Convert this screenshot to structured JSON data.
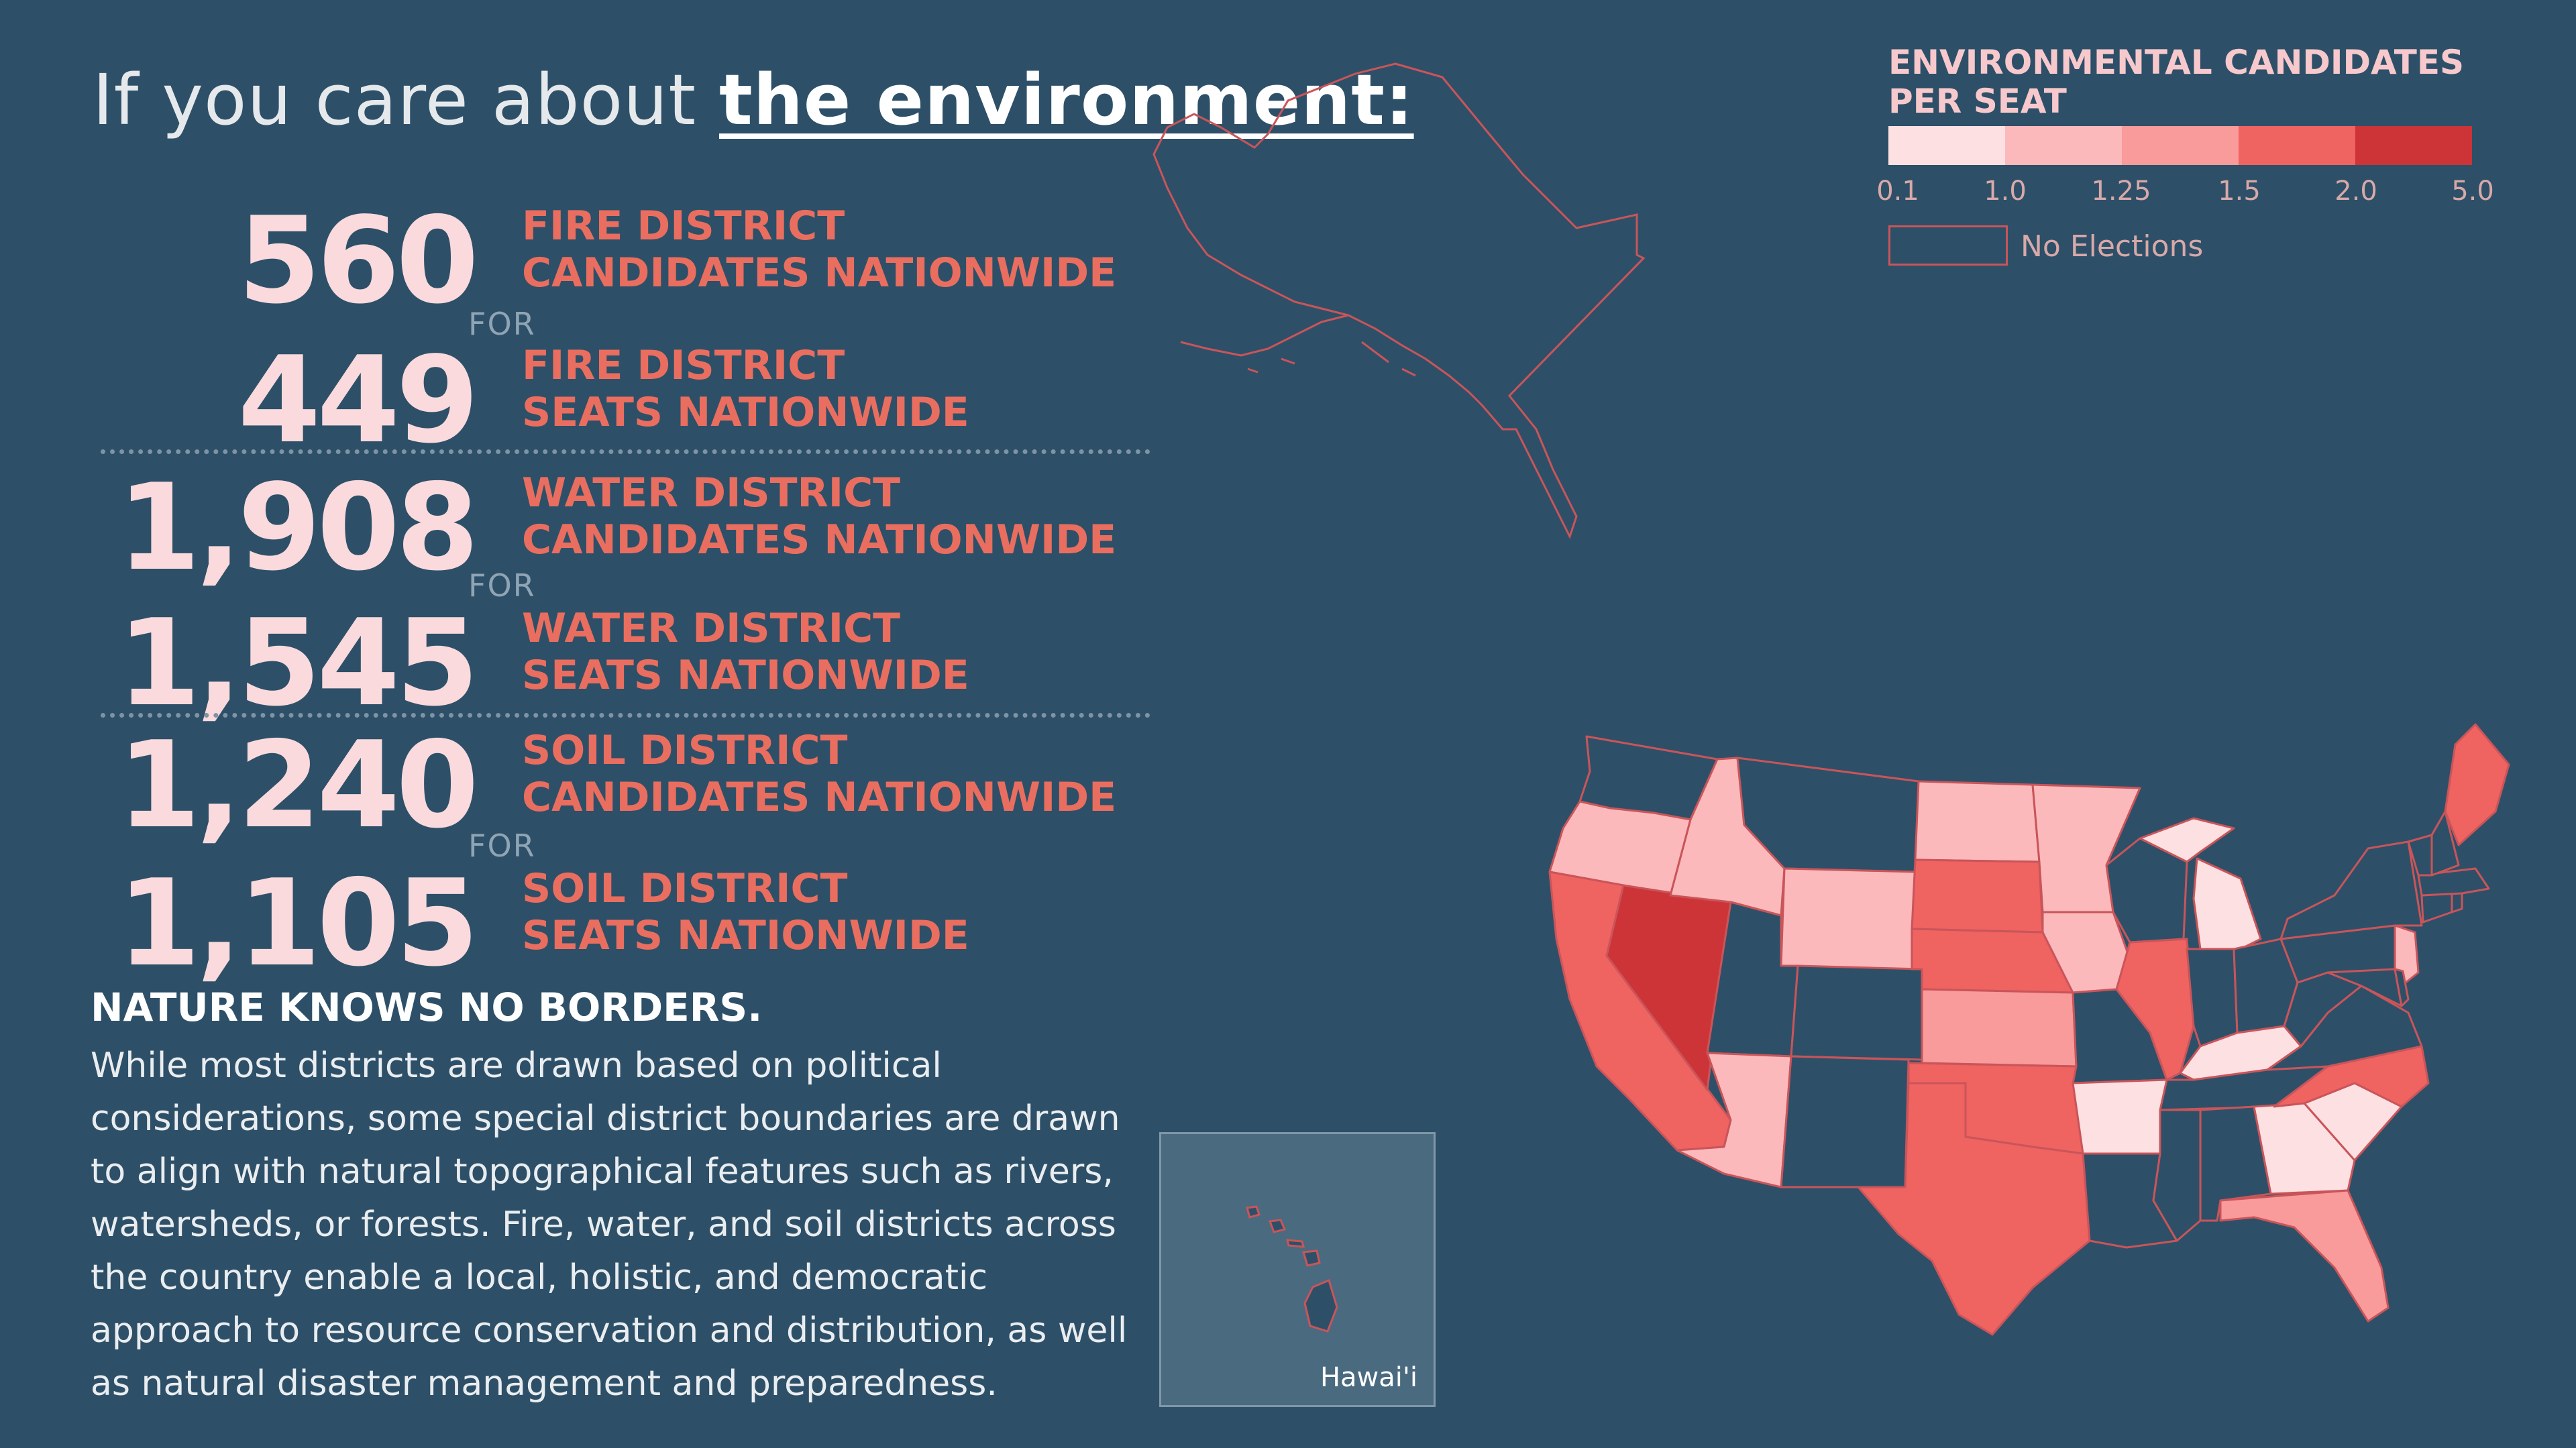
{
  "headline": {
    "prefix": "If you care about ",
    "emphasis": "the environment:"
  },
  "stats": [
    {
      "number": "560",
      "label_line1": "FIRE DISTRICT",
      "label_line2": "CANDIDATES NATIONWIDE"
    },
    {
      "number": "449",
      "label_line1": "FIRE DISTRICT",
      "label_line2": "SEATS NATIONWIDE"
    },
    {
      "number": "1,908",
      "label_line1": "WATER DISTRICT",
      "label_line2": "CANDIDATES NATIONWIDE"
    },
    {
      "number": "1,545",
      "label_line1": "WATER DISTRICT",
      "label_line2": "SEATS NATIONWIDE"
    },
    {
      "number": "1,240",
      "label_line1": "SOIL DISTRICT",
      "label_line2": "CANDIDATES NATIONWIDE"
    },
    {
      "number": "1,105",
      "label_line1": "SOIL DISTRICT",
      "label_line2": "SEATS NATIONWIDE"
    }
  ],
  "for_text": "FOR",
  "nature": {
    "title": "NATURE KNOWS NO BORDERS.",
    "body": "While most districts are drawn based on political considerations, some special district boundaries are drawn to align with natural topographical features such as rivers, watersheds, or forests. Fire, water, and soil districts across the country enable a local, holistic, and democratic approach to resource conservation and distribution, as well as natural disaster management and preparedness."
  },
  "legend": {
    "title": "ENVIRONMENTAL CANDIDATES PER SEAT",
    "ticks": [
      "0.1",
      "1.0",
      "1.25",
      "1.5",
      "2.0",
      "5.0"
    ],
    "colors": [
      "#fde0e2",
      "#fbb9bb",
      "#f99a9b",
      "#ef6361",
      "#cd3438"
    ],
    "no_elections_label": "No Elections"
  },
  "map": {
    "no_election_color": "#2d5068",
    "border_color": "#c9555a",
    "hawaii_label": "Hawai'i",
    "states": [
      {
        "state": "Washington",
        "bin": "none"
      },
      {
        "state": "Oregon",
        "bin": 1
      },
      {
        "state": "California",
        "bin": 3
      },
      {
        "state": "Nevada",
        "bin": 4
      },
      {
        "state": "Idaho",
        "bin": 1
      },
      {
        "state": "Montana",
        "bin": "none"
      },
      {
        "state": "Wyoming",
        "bin": 1
      },
      {
        "state": "Utah",
        "bin": "none"
      },
      {
        "state": "Arizona",
        "bin": 1
      },
      {
        "state": "Colorado",
        "bin": "none"
      },
      {
        "state": "New Mexico",
        "bin": "none"
      },
      {
        "state": "North Dakota",
        "bin": 1
      },
      {
        "state": "South Dakota",
        "bin": 3
      },
      {
        "state": "Nebraska",
        "bin": 3
      },
      {
        "state": "Kansas",
        "bin": 2
      },
      {
        "state": "Oklahoma",
        "bin": 3
      },
      {
        "state": "Texas",
        "bin": 3
      },
      {
        "state": "Minnesota",
        "bin": 1
      },
      {
        "state": "Iowa",
        "bin": 1
      },
      {
        "state": "Missouri",
        "bin": "none"
      },
      {
        "state": "Arkansas",
        "bin": 0
      },
      {
        "state": "Louisiana",
        "bin": "none"
      },
      {
        "state": "Wisconsin",
        "bin": "none"
      },
      {
        "state": "Illinois",
        "bin": 3
      },
      {
        "state": "Michigan",
        "bin": 0
      },
      {
        "state": "Indiana",
        "bin": "none"
      },
      {
        "state": "Ohio",
        "bin": "none"
      },
      {
        "state": "Kentucky",
        "bin": 0
      },
      {
        "state": "Tennessee",
        "bin": "none"
      },
      {
        "state": "Mississippi",
        "bin": "none"
      },
      {
        "state": "Alabama",
        "bin": "none"
      },
      {
        "state": "Georgia",
        "bin": 0
      },
      {
        "state": "Florida",
        "bin": 2
      },
      {
        "state": "South Carolina",
        "bin": 0
      },
      {
        "state": "North Carolina",
        "bin": 3
      },
      {
        "state": "Virginia",
        "bin": "none"
      },
      {
        "state": "West Virginia",
        "bin": "none"
      },
      {
        "state": "Pennsylvania",
        "bin": "none"
      },
      {
        "state": "New York",
        "bin": "none"
      },
      {
        "state": "New Jersey",
        "bin": 1
      },
      {
        "state": "Maryland",
        "bin": "none"
      },
      {
        "state": "Delaware",
        "bin": "none"
      },
      {
        "state": "Connecticut",
        "bin": "none"
      },
      {
        "state": "Rhode Island",
        "bin": "none"
      },
      {
        "state": "Massachusetts",
        "bin": "none"
      },
      {
        "state": "Vermont",
        "bin": "none"
      },
      {
        "state": "New Hampshire",
        "bin": "none"
      },
      {
        "state": "Maine",
        "bin": 3
      },
      {
        "state": "Alaska",
        "bin": "none"
      },
      {
        "state": "Hawaii",
        "bin": "none"
      }
    ]
  }
}
